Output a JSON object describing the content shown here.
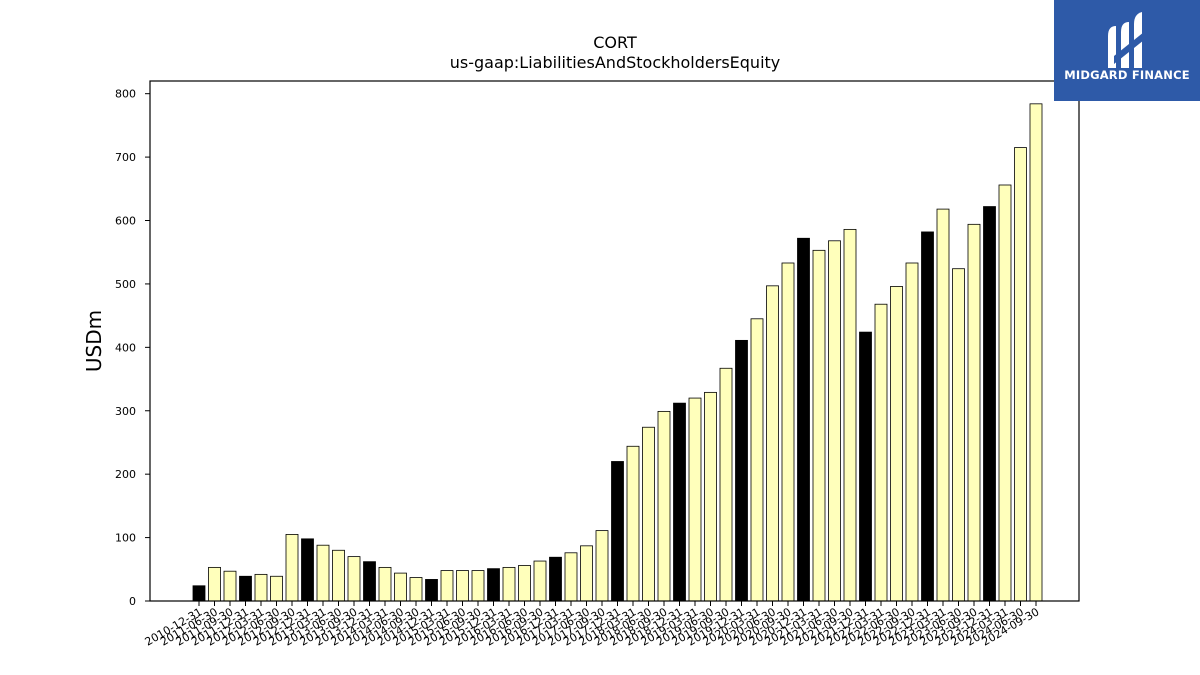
{
  "chart_data": {
    "type": "bar",
    "title": "CORT",
    "subtitle": "us-gaap:LiabilitiesAndStockholdersEquity",
    "xlabel": "",
    "ylabel": "USDm",
    "ylim": [
      0,
      820
    ],
    "yticks": [
      0,
      100,
      200,
      300,
      400,
      500,
      600,
      700,
      800
    ],
    "grid": false,
    "colors": {
      "annual": "#000000",
      "quarterly": "#ffffbb",
      "edge": "#000000"
    },
    "categories": [
      "2010-12-31",
      "2011-06-30",
      "2011-09-30",
      "2011-12-31",
      "2012-03-31",
      "2012-06-30",
      "2012-09-30",
      "2012-12-31",
      "2013-03-31",
      "2013-06-30",
      "2013-09-30",
      "2013-12-31",
      "2014-03-31",
      "2014-06-30",
      "2014-09-30",
      "2014-12-31",
      "2015-03-31",
      "2015-06-30",
      "2015-09-30",
      "2015-12-31",
      "2016-03-31",
      "2016-06-30",
      "2016-09-30",
      "2016-12-31",
      "2017-03-31",
      "2017-06-30",
      "2017-09-30",
      "2017-12-31",
      "2018-03-31",
      "2018-06-30",
      "2018-09-30",
      "2018-12-31",
      "2019-03-31",
      "2019-06-30",
      "2019-09-30",
      "2019-12-31",
      "2020-03-31",
      "2020-06-30",
      "2020-09-30",
      "2020-12-31",
      "2021-03-31",
      "2021-06-30",
      "2021-09-30",
      "2021-12-31",
      "2022-03-31",
      "2022-06-30",
      "2022-09-30",
      "2022-12-31",
      "2023-03-31",
      "2023-06-30",
      "2023-09-30",
      "2023-12-31",
      "2024-03-31",
      "2024-06-30",
      "2024-09-30"
    ],
    "values": [
      24,
      53,
      47,
      39,
      42,
      39,
      105,
      98,
      88,
      80,
      70,
      62,
      53,
      44,
      37,
      34,
      48,
      48,
      48,
      51,
      53,
      56,
      63,
      69,
      76,
      87,
      111,
      220,
      244,
      274,
      299,
      312,
      320,
      329,
      367,
      411,
      445,
      497,
      533,
      572,
      553,
      568,
      586,
      424,
      468,
      496,
      533,
      582,
      618,
      524,
      594,
      622,
      656,
      715,
      784
    ],
    "annual": [
      true,
      false,
      false,
      true,
      false,
      false,
      false,
      true,
      false,
      false,
      false,
      true,
      false,
      false,
      false,
      true,
      false,
      false,
      false,
      true,
      false,
      false,
      false,
      true,
      false,
      false,
      false,
      true,
      false,
      false,
      false,
      true,
      false,
      false,
      false,
      true,
      false,
      false,
      false,
      true,
      false,
      false,
      false,
      true,
      false,
      false,
      false,
      true,
      false,
      false,
      false,
      true,
      false,
      false,
      false
    ]
  },
  "branding": {
    "logo_text": "MIDGARD FINANCE"
  }
}
